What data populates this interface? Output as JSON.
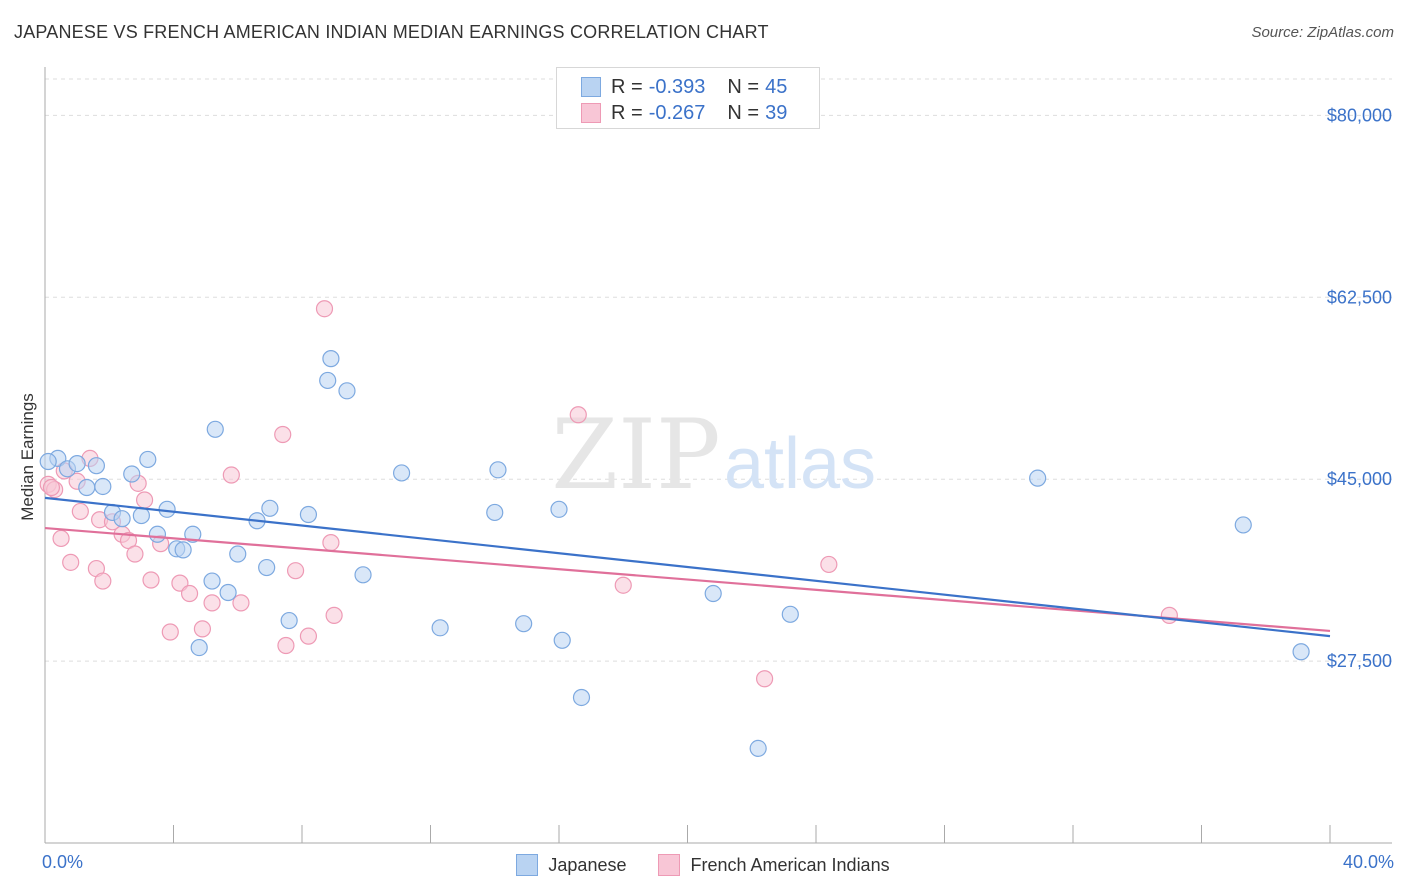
{
  "title": "JAPANESE VS FRENCH AMERICAN INDIAN MEDIAN EARNINGS CORRELATION CHART",
  "source": "Source: ZipAtlas.com",
  "watermark": {
    "zip": "ZIP",
    "atlas": "atlas"
  },
  "legend_top": [
    {
      "r_label": "R =",
      "r_value": "-0.393",
      "n_label": "N =",
      "n_value": "45"
    },
    {
      "r_label": "R =",
      "r_value": "-0.267",
      "n_label": "N =",
      "n_value": "39"
    }
  ],
  "legend_bottom": [
    "Japanese",
    "French American Indians"
  ],
  "colors": {
    "japanese_fill": "#b9d3f2",
    "japanese_stroke": "#7da9e0",
    "japanese_line": "#3b72c9",
    "french_fill": "#f8c6d6",
    "french_stroke": "#ee9ab5",
    "french_line": "#e0709a",
    "axis_text": "#3b72c9",
    "grid": "#dddddd"
  },
  "chart_data": {
    "type": "scatter",
    "title": "JAPANESE VS FRENCH AMERICAN INDIAN MEDIAN EARNINGS CORRELATION CHART",
    "xlabel": "",
    "ylabel": "Median Earnings",
    "xlim": [
      0,
      40
    ],
    "ylim": [
      10000,
      83500
    ],
    "x_tick_labels": [
      "0.0%",
      "40.0%"
    ],
    "y_ticks": [
      27500,
      45000,
      62500,
      80000
    ],
    "y_tick_labels": [
      "$27,500",
      "$45,000",
      "$62,500",
      "$80,000"
    ],
    "grid": true,
    "legend_position": "bottom",
    "series": [
      {
        "name": "Japanese",
        "r": -0.393,
        "n": 45,
        "trend": {
          "x": [
            0,
            40
          ],
          "y": [
            43200,
            29900
          ]
        },
        "points": [
          [
            0.4,
            47000
          ],
          [
            0.7,
            46000
          ],
          [
            1.0,
            46500
          ],
          [
            1.3,
            44200
          ],
          [
            1.6,
            46300
          ],
          [
            1.8,
            44300
          ],
          [
            2.1,
            41800
          ],
          [
            2.4,
            41200
          ],
          [
            2.7,
            45500
          ],
          [
            3.0,
            41500
          ],
          [
            3.2,
            46900
          ],
          [
            3.5,
            39700
          ],
          [
            3.8,
            42100
          ],
          [
            4.1,
            38300
          ],
          [
            4.3,
            38200
          ],
          [
            4.6,
            39700
          ],
          [
            4.8,
            28800
          ],
          [
            5.3,
            49800
          ],
          [
            5.2,
            35200
          ],
          [
            5.7,
            34100
          ],
          [
            6.0,
            37800
          ],
          [
            6.6,
            41000
          ],
          [
            6.9,
            36500
          ],
          [
            7.0,
            42200
          ],
          [
            7.6,
            31400
          ],
          [
            8.2,
            41600
          ],
          [
            8.9,
            56600
          ],
          [
            8.8,
            54500
          ],
          [
            9.4,
            53500
          ],
          [
            9.9,
            35800
          ],
          [
            11.1,
            45600
          ],
          [
            12.3,
            30700
          ],
          [
            14.1,
            45900
          ],
          [
            14.0,
            41800
          ],
          [
            14.9,
            31100
          ],
          [
            16.0,
            42100
          ],
          [
            16.1,
            29500
          ],
          [
            16.7,
            24000
          ],
          [
            20.8,
            34000
          ],
          [
            22.2,
            19100
          ],
          [
            23.2,
            32000
          ],
          [
            30.9,
            45100
          ],
          [
            37.3,
            40600
          ],
          [
            39.1,
            28400
          ],
          [
            0.1,
            46700
          ]
        ]
      },
      {
        "name": "French American Indians",
        "r": -0.267,
        "n": 39,
        "trend": {
          "x": [
            0,
            40
          ],
          "y": [
            40300,
            30400
          ]
        },
        "points": [
          [
            0.1,
            44500
          ],
          [
            0.3,
            44000
          ],
          [
            0.5,
            39300
          ],
          [
            0.8,
            37000
          ],
          [
            1.0,
            44800
          ],
          [
            1.1,
            41900
          ],
          [
            1.4,
            47000
          ],
          [
            1.6,
            36400
          ],
          [
            1.7,
            41100
          ],
          [
            1.8,
            35200
          ],
          [
            2.1,
            40900
          ],
          [
            2.4,
            39700
          ],
          [
            2.6,
            39100
          ],
          [
            2.8,
            37800
          ],
          [
            2.9,
            44600
          ],
          [
            3.1,
            43000
          ],
          [
            3.3,
            35300
          ],
          [
            3.6,
            38800
          ],
          [
            3.9,
            30300
          ],
          [
            4.2,
            35000
          ],
          [
            4.5,
            34000
          ],
          [
            4.9,
            30600
          ],
          [
            5.2,
            33100
          ],
          [
            5.8,
            45400
          ],
          [
            6.1,
            33100
          ],
          [
            7.4,
            49300
          ],
          [
            7.5,
            29000
          ],
          [
            7.8,
            36200
          ],
          [
            8.2,
            29900
          ],
          [
            8.7,
            61400
          ],
          [
            8.9,
            38900
          ],
          [
            9.0,
            31900
          ],
          [
            16.6,
            51200
          ],
          [
            18.0,
            34800
          ],
          [
            22.4,
            25800
          ],
          [
            24.4,
            36800
          ],
          [
            35.0,
            31900
          ],
          [
            0.2,
            44200
          ],
          [
            0.6,
            45800
          ]
        ]
      }
    ]
  }
}
